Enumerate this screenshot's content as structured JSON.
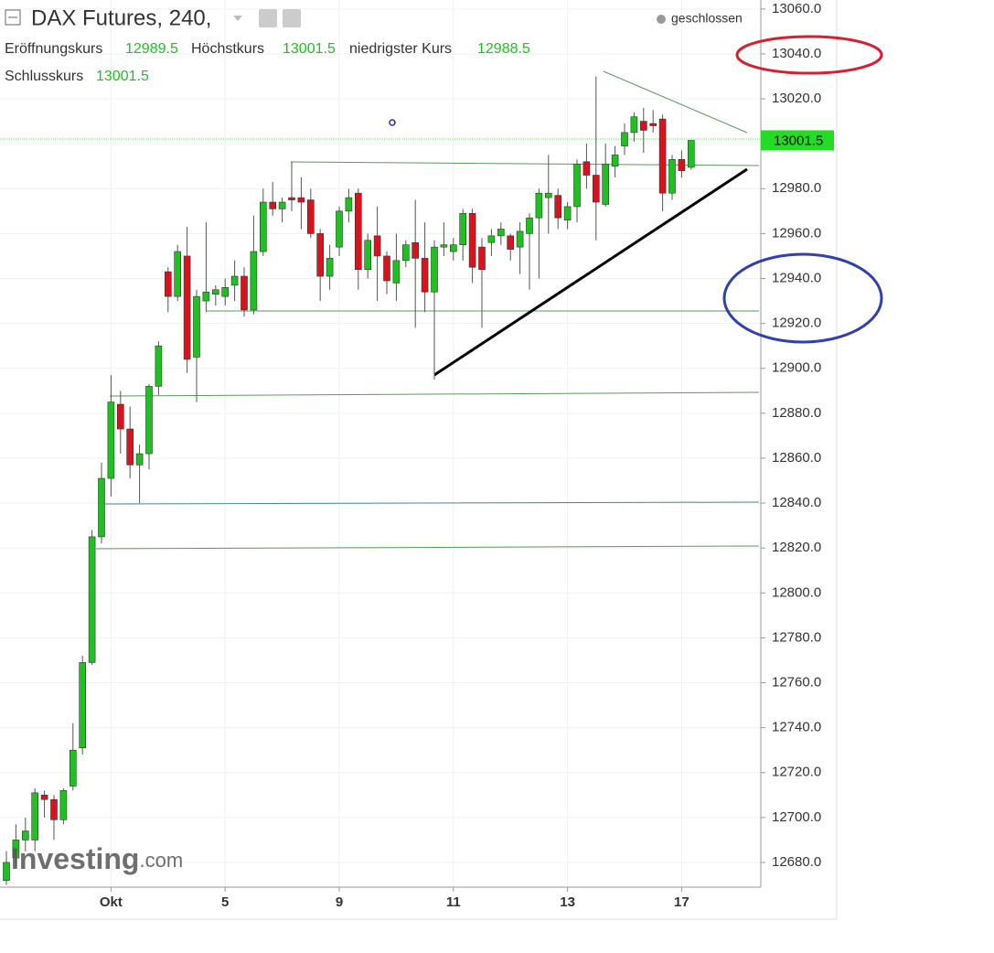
{
  "chart_data": {
    "type": "candlestick",
    "title": "DAX Futures, 240,",
    "status": "geschlossen",
    "open_label": "Eröffnungskurs",
    "high_label": "Höchstkurs",
    "low_label": "niedrigster Kurs",
    "close_label": "Schlusskurs",
    "watermark": "Investing",
    "watermark_suffix": ".com",
    "up_color": "#1ec21e",
    "down_color": "#d9121b",
    "grid": true,
    "categories": [
      null,
      null,
      null,
      null,
      null,
      null,
      null,
      null,
      null,
      null,
      null,
      "Okt",
      null,
      null,
      null,
      null,
      null,
      null,
      null,
      null,
      null,
      null,
      null,
      "5",
      null,
      null,
      null,
      null,
      null,
      null,
      null,
      null,
      null,
      null,
      null,
      "9",
      null,
      null,
      null,
      null,
      null,
      null,
      null,
      null,
      null,
      null,
      null,
      "11",
      null,
      null,
      null,
      null,
      null,
      null,
      null,
      null,
      null,
      null,
      null,
      "13",
      null,
      null,
      null,
      null,
      null,
      null,
      null,
      null,
      null,
      null,
      null,
      "17",
      null
    ],
    "open": [
      12672,
      12682,
      12690,
      12690,
      12710,
      12708,
      12699,
      12714,
      12731,
      12769,
      12825,
      12851,
      12884,
      12873,
      12857,
      12862,
      12892,
      12943,
      12932,
      12950,
      12905,
      12930,
      12933,
      12932,
      12937,
      12941,
      12926,
      12952,
      12974,
      12971,
      12976,
      12976,
      12975,
      12960,
      12941,
      12954,
      12970,
      12978,
      12944,
      12959,
      12950,
      12938,
      12948,
      12956,
      12949,
      12934,
      12954,
      12952,
      12955,
      12969,
      12954,
      12956,
      12959,
      12959,
      12954,
      12960,
      12967,
      12976,
      12977,
      12966,
      12972,
      12992,
      12986,
      12973,
      12990,
      12999,
      13005,
      13010,
      13009,
      13011,
      12978,
      12993,
      12989.5
    ],
    "high": [
      12685,
      12697,
      12700,
      12713,
      12712,
      12710,
      12713,
      12742,
      12772,
      12828,
      12858,
      12897,
      12890,
      12883,
      12866,
      12893,
      12912,
      12945,
      12955,
      12963,
      12935,
      12965,
      12937,
      12940,
      12948,
      12945,
      12968,
      12980,
      12983,
      12976,
      12992,
      12985,
      12980,
      12962,
      12955,
      12972,
      12980,
      12980,
      12960,
      12972,
      12952,
      12960,
      12957,
      12975,
      12965,
      12957,
      12965,
      12958,
      12971,
      12971,
      12958,
      12962,
      12965,
      12960,
      12965,
      12969,
      12980,
      12995,
      12980,
      12974,
      12993,
      13000,
      13030,
      13000,
      12999,
      13009,
      13014,
      13016,
      13015,
      13013,
      12995,
      12997,
      13001.5
    ],
    "low": [
      12670,
      12678,
      12685,
      12685,
      12700,
      12690,
      12697,
      12712,
      12728,
      12768,
      12822,
      12843,
      12862,
      12851,
      12840,
      12855,
      12888,
      12925,
      12930,
      12898,
      12885,
      12925,
      12928,
      12928,
      12930,
      12923,
      12924,
      12950,
      12968,
      12965,
      12970,
      12962,
      12958,
      12930,
      12935,
      12950,
      12965,
      12935,
      12940,
      12930,
      12933,
      12930,
      12945,
      12918,
      12925,
      12895,
      12950,
      12948,
      12948,
      12938,
      12918,
      12950,
      12955,
      12948,
      12942,
      12935,
      12940,
      12960,
      12962,
      12962,
      12965,
      12980,
      12957,
      12972,
      12985,
      12995,
      13001,
      12996,
      13005,
      12970,
      12975,
      12985,
      12988.5
    ],
    "close": [
      12680,
      12690,
      12694,
      12711,
      12708,
      12699,
      12712,
      12730,
      12769,
      12825,
      12851,
      12885,
      12873,
      12857,
      12862,
      12892,
      12910,
      12932,
      12952,
      12904,
      12932,
      12934,
      12935,
      12936,
      12941,
      12926,
      12952,
      12974,
      12971,
      12974,
      12975,
      12974,
      12960,
      12941,
      12949,
      12970,
      12976,
      12944,
      12957,
      12950,
      12939,
      12948,
      12955,
      12949,
      12934,
      12954,
      12955,
      12955,
      12969,
      12945,
      12944,
      12959,
      12962,
      12953,
      12961,
      12967,
      12978,
      12978,
      12967,
      12972,
      12991,
      12986,
      12974,
      12991,
      12995,
      13005,
      13012,
      13006,
      13008,
      12978,
      12993,
      12988,
      13001.5
    ],
    "ylim": [
      12669,
      13064
    ],
    "yticks": [
      {
        "value": 12680,
        "label": "12680.0"
      },
      {
        "value": 12700,
        "label": "12700.0"
      },
      {
        "value": 12720,
        "label": "12720.0"
      },
      {
        "value": 12740,
        "label": "12740.0"
      },
      {
        "value": 12760,
        "label": "12760.0"
      },
      {
        "value": 12780,
        "label": "12780.0"
      },
      {
        "value": 12800,
        "label": "12800.0"
      },
      {
        "value": 12820,
        "label": "12820.0"
      },
      {
        "value": 12840,
        "label": "12840.0"
      },
      {
        "value": 12860,
        "label": "12860.0"
      },
      {
        "value": 12880,
        "label": "12880.0"
      },
      {
        "value": 12900,
        "label": "12900.0"
      },
      {
        "value": 12920,
        "label": "12920.0"
      },
      {
        "value": 12940,
        "label": "12940.0"
      },
      {
        "value": 12960,
        "label": "12960.0"
      },
      {
        "value": 12980,
        "label": "12980.0"
      },
      {
        "value": 13000,
        "label": "13000.0"
      },
      {
        "value": 13020,
        "label": "13020.0"
      },
      {
        "value": 13040,
        "label": "13040.0"
      },
      {
        "value": 13060,
        "label": "13060.0"
      }
    ]
  }
}
